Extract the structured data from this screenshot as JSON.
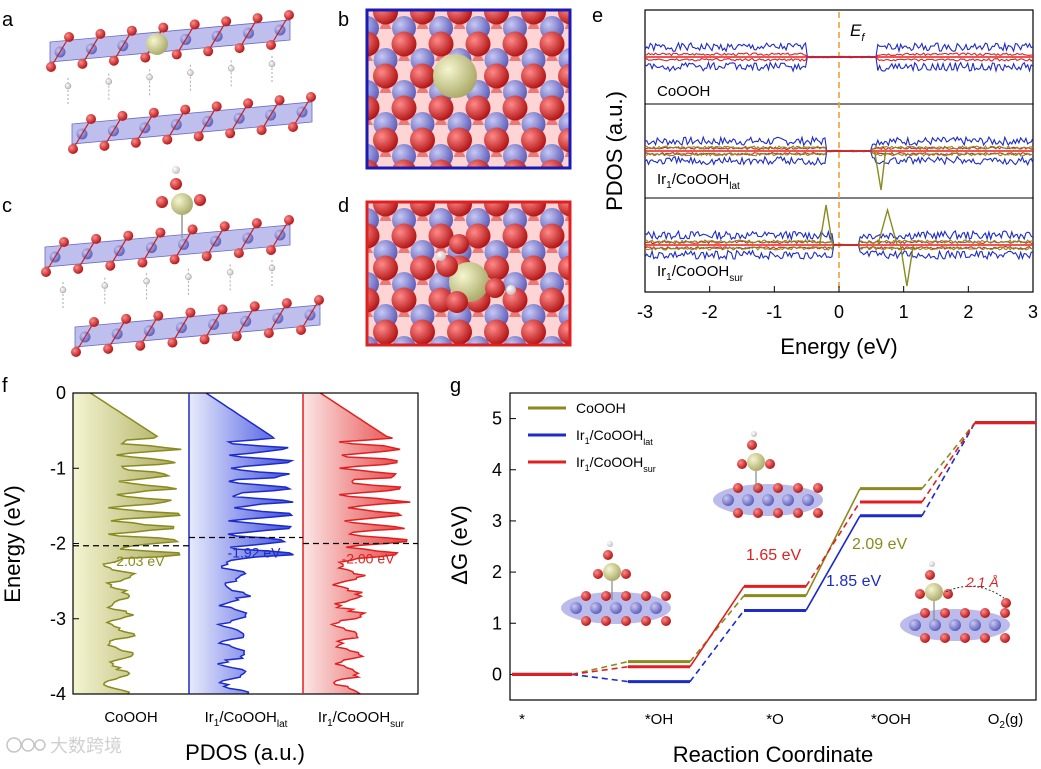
{
  "panel_labels": {
    "a": "a",
    "b": "b",
    "c": "c",
    "d": "d",
    "e": "e",
    "f": "f",
    "g": "g"
  },
  "watermark": "大数跨境",
  "colors": {
    "coooh": "#8a8a1e",
    "lat": "#1d2bc8",
    "sur": "#e02020",
    "fermi": "#f0a030",
    "cobalt": "#7a7ad8",
    "oxygen": "#d42020",
    "iridium": "#cfcf8a",
    "hydrogen": "#f0e6e6"
  },
  "panel_e": {
    "ylabel": "PDOS (a.u.)",
    "xlabel": "Energy (eV)",
    "fermi_base": "E",
    "fermi_sub": "f",
    "xticks": [
      "-3",
      "-2",
      "-1",
      "0",
      "1",
      "2",
      "3"
    ],
    "rows": [
      {
        "base": "CoOOH",
        "pre": "",
        "sub": ""
      },
      {
        "base": "Ir",
        "pre": "1",
        "post": "/CoOOH",
        "sub": "lat"
      },
      {
        "base": "Ir",
        "pre": "1",
        "post": "/CoOOH",
        "sub": "sur"
      }
    ]
  },
  "panel_f": {
    "ylabel": "Energy (eV)",
    "xlabel": "PDOS (a.u.)",
    "yticks": [
      "0",
      "-1",
      "-2",
      "-3",
      "-4"
    ],
    "columns": [
      {
        "name_base": "CoOOH",
        "name_sub": "",
        "dband": "-2.03 eV",
        "dband_value": -2.03
      },
      {
        "name_base": "Ir",
        "name_pre": "1",
        "name_post": "/CoOOH",
        "name_sub": "lat",
        "dband": "-1.92 eV",
        "dband_value": -1.92
      },
      {
        "name_base": "Ir",
        "name_pre": "1",
        "name_post": "/CoOOH",
        "name_sub": "sur",
        "dband": "-2.00 eV",
        "dband_value": -2.0
      }
    ]
  },
  "chart_data": {
    "type": "line",
    "title": "",
    "xlabel": "Reaction Coordinate",
    "ylabel": "ΔG (eV)",
    "categories": [
      "*",
      "*OH",
      "*O",
      "*OOH",
      "O2(g)"
    ],
    "category_labels": [
      {
        "base": "*",
        "sub": ""
      },
      {
        "base": "*OH",
        "sub": ""
      },
      {
        "base": "*O",
        "sub": ""
      },
      {
        "base": "*OOH",
        "sub": ""
      },
      {
        "base": "O",
        "sub": "2",
        "post": "(g)"
      }
    ],
    "yticks": [
      "0",
      "1",
      "2",
      "3",
      "4",
      "5"
    ],
    "ylim": [
      -0.5,
      5.5
    ],
    "series": [
      {
        "name": "CoOOH",
        "name_base": "CoOOH",
        "name_sub": "",
        "values": [
          0,
          0.25,
          1.54,
          3.63,
          4.92
        ]
      },
      {
        "name": "Ir1/CoOOHlat",
        "name_base": "Ir",
        "name_pre": "1",
        "name_post": "/CoOOH",
        "name_sub": "lat",
        "values": [
          0,
          -0.14,
          1.25,
          3.1,
          4.92
        ]
      },
      {
        "name": "Ir1/CoOOHsur",
        "name_base": "Ir",
        "name_pre": "1",
        "name_post": "/CoOOH",
        "name_sub": "sur",
        "values": [
          0,
          0.15,
          1.72,
          3.37,
          4.92
        ]
      }
    ],
    "annotations": [
      {
        "text": "1.65 eV",
        "series": 2
      },
      {
        "text": "2.09 eV",
        "series": 0
      },
      {
        "text": "1.85 eV",
        "series": 1
      },
      {
        "text": "2.1 Å",
        "series": -1
      }
    ]
  }
}
